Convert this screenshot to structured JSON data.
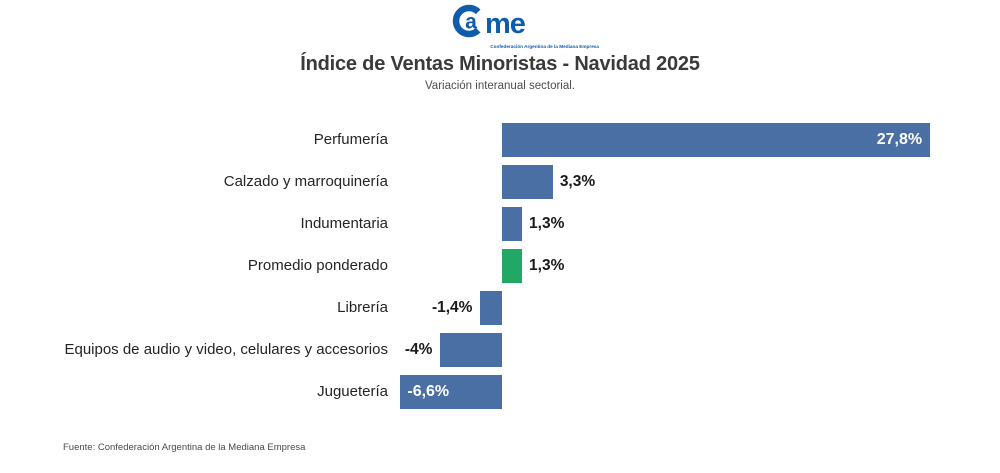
{
  "logo": {
    "brand": "CAME",
    "letter_a": "a",
    "letters_me": "me",
    "tagline": "Confederación Argentina de la Mediana Empresa",
    "color": "#0F5CAB"
  },
  "chart_data": {
    "type": "bar",
    "orientation": "horizontal",
    "title": "Índice de Ventas Minoristas - Navidad 2025",
    "subtitle": "Variación interanual sectorial.",
    "categories": [
      "Perfumería",
      "Calzado y marroquinería",
      "Indumentaria",
      "Promedio ponderado",
      "Librería",
      "Equipos de audio y video, celulares y accesorios",
      "Juguetería"
    ],
    "values": [
      27.8,
      3.3,
      1.3,
      1.3,
      -1.4,
      -4,
      -6.6
    ],
    "value_labels": [
      "27,8%",
      "3,3%",
      "1,3%",
      "1,3%",
      "-1,4%",
      "-4%",
      "-6,6%"
    ],
    "highlight_index": 3,
    "bar_color": "#4A6FA5",
    "highlight_color": "#21A867",
    "value_label_inside_color": "#FFFFFF",
    "value_label_outside_color": "#1A1A1A",
    "xlim": [
      -8,
      28
    ],
    "grid": false,
    "axis_lines": "hidden",
    "legend": "none"
  },
  "footer": {
    "source": "Fuente: Confederación Argentina de la Mediana Empresa"
  },
  "colors": {
    "background": "#FFFFFF",
    "logo_blue": "#0F5CAB",
    "bar_blue": "#4A6FA5",
    "highlight_green": "#21A867",
    "title_text": "#3A3A3A",
    "subtitle_text": "#4E4E4E",
    "label_text": "#242424",
    "footer_text": "#4A4A4A"
  }
}
